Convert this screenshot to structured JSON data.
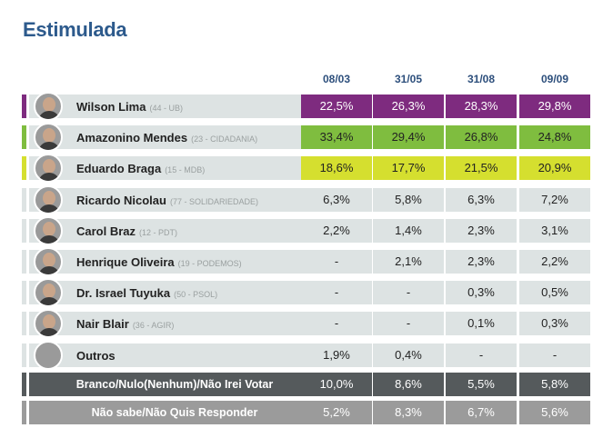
{
  "title": "Estimulada",
  "colors": {
    "purple": "#7e2b7f",
    "green": "#7fbd3f",
    "yellow": "#d5df2f",
    "row_bg": "#dde3e3",
    "dark_gray": "#555a5c",
    "mid_gray": "#9b9b9b",
    "title_blue": "#2d5a8c"
  },
  "chart_data": {
    "type": "table",
    "title": "Estimulada",
    "columns": [
      "08/03",
      "31/05",
      "31/08",
      "09/09"
    ],
    "rows": [
      {
        "name": "Wilson Lima",
        "party": "(44 - UB)",
        "values": [
          "22,5%",
          "26,3%",
          "28,3%",
          "29,8%"
        ],
        "highlight": "purple",
        "avatar": "person"
      },
      {
        "name": "Amazonino Mendes",
        "party": "(23 - CIDADANIA)",
        "values": [
          "33,4%",
          "29,4%",
          "26,8%",
          "24,8%"
        ],
        "highlight": "green",
        "avatar": "person"
      },
      {
        "name": "Eduardo Braga",
        "party": "(15 - MDB)",
        "values": [
          "18,6%",
          "17,7%",
          "21,5%",
          "20,9%"
        ],
        "highlight": "yellow",
        "avatar": "person"
      },
      {
        "name": "Ricardo Nicolau",
        "party": "(77 - SOLIDARIEDADE)",
        "values": [
          "6,3%",
          "5,8%",
          "6,3%",
          "7,2%"
        ],
        "highlight": "none",
        "avatar": "person"
      },
      {
        "name": "Carol Braz",
        "party": "(12 - PDT)",
        "values": [
          "2,2%",
          "1,4%",
          "2,3%",
          "3,1%"
        ],
        "highlight": "none",
        "avatar": "person"
      },
      {
        "name": "Henrique Oliveira",
        "party": "(19 - PODEMOS)",
        "values": [
          "-",
          "2,1%",
          "2,3%",
          "2,2%"
        ],
        "highlight": "none",
        "avatar": "person"
      },
      {
        "name": "Dr. Israel Tuyuka",
        "party": "(50 - PSOL)",
        "values": [
          "-",
          "-",
          "0,3%",
          "0,5%"
        ],
        "highlight": "none",
        "avatar": "person"
      },
      {
        "name": "Nair Blair",
        "party": "(36 - AGIR)",
        "values": [
          "-",
          "-",
          "0,1%",
          "0,3%"
        ],
        "highlight": "none",
        "avatar": "person"
      },
      {
        "name": "Outros",
        "party": "",
        "values": [
          "1,9%",
          "0,4%",
          "-",
          "-"
        ],
        "highlight": "none",
        "avatar": "plain"
      }
    ],
    "summary_rows": [
      {
        "label": "Branco/Nulo(Nenhum)/Não Irei Votar",
        "values": [
          "10,0%",
          "8,6%",
          "5,5%",
          "5,8%"
        ],
        "color": "dark_gray"
      },
      {
        "label": "Não sabe/Não Quis Responder",
        "values": [
          "5,2%",
          "8,3%",
          "6,7%",
          "5,6%"
        ],
        "color": "mid_gray"
      }
    ]
  }
}
